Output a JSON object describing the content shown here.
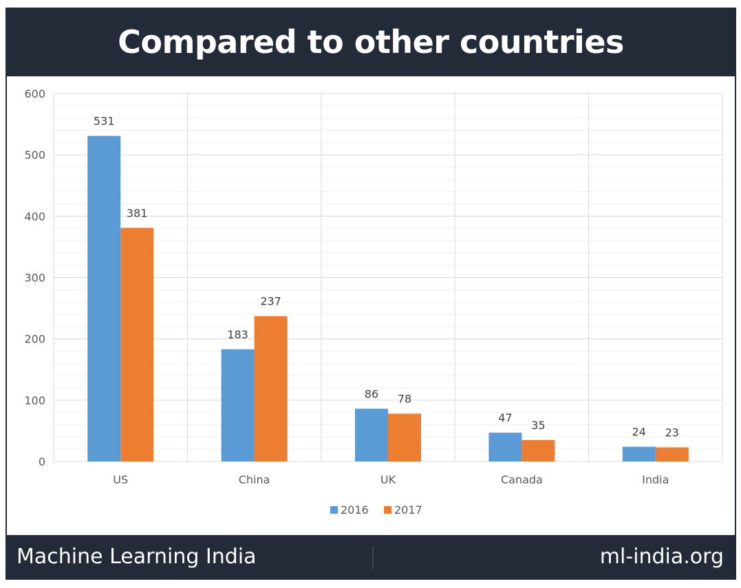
{
  "header": {
    "title": "Compared to other countries"
  },
  "footer": {
    "left": "Machine Learning India",
    "right": "ml-india.org"
  },
  "colors": {
    "2016": "#5b9bd5",
    "2017": "#ed7d31",
    "frame": "#222b37"
  },
  "chart_data": {
    "type": "bar",
    "categories": [
      "US",
      "China",
      "UK",
      "Canada",
      "India"
    ],
    "series": [
      {
        "name": "2016",
        "values": [
          531,
          183,
          86,
          47,
          24
        ]
      },
      {
        "name": "2017",
        "values": [
          381,
          237,
          78,
          35,
          23
        ]
      }
    ],
    "ylim": [
      0,
      600
    ],
    "yticks": [
      0,
      100,
      200,
      300,
      400,
      500,
      600
    ],
    "grid": true,
    "legend": "bottom",
    "data_labels": true
  }
}
